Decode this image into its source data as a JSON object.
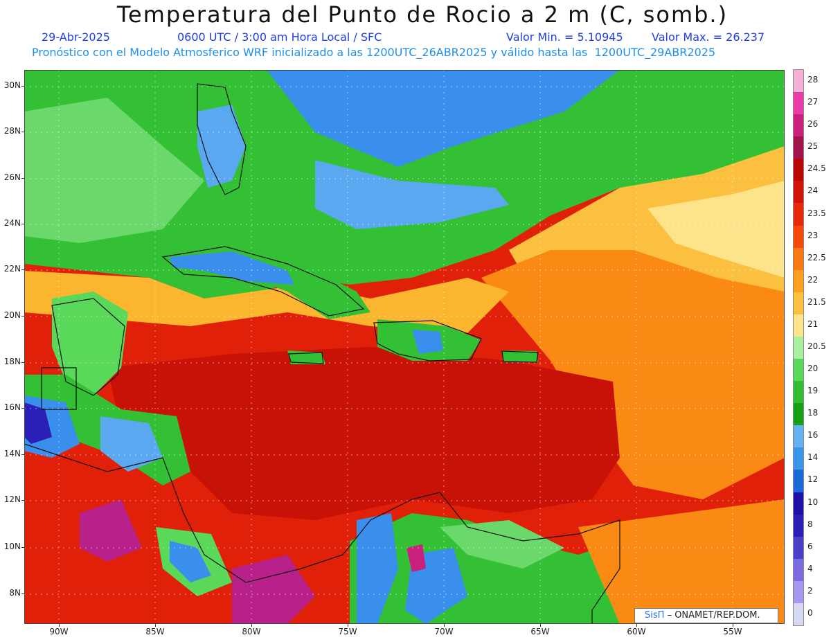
{
  "title": "Temperatura del Punto de Rocio a 2 m (C, somb.)",
  "subtitle": {
    "date": "29-Abr-2025",
    "time": "0600 UTC / 3:00 am Hora Local / SFC",
    "min": "Valor Min. = 5.10945",
    "max": "Valor Max. = 26.237",
    "model": "Pronóstico con el Modelo Atmosferico WRF inicializado a las 1200UTC_26ABR2025 y válido hasta las  1200UTC_29ABR2025"
  },
  "lat_labels": [
    "30N",
    "28N",
    "26N",
    "24N",
    "22N",
    "20N",
    "18N",
    "16N",
    "14N",
    "12N",
    "10N",
    "8N"
  ],
  "lon_labels": [
    "90W",
    "85W",
    "80W",
    "75W",
    "70W",
    "65W",
    "60W",
    "55W"
  ],
  "legend": {
    "levels": [
      "28",
      "27",
      "26",
      "25",
      "24.5",
      "24",
      "23.5",
      "23",
      "22.5",
      "22",
      "21.5",
      "21",
      "20.5",
      "20",
      "19",
      "18",
      "16",
      "14",
      "12",
      "10",
      "8",
      "6",
      "4",
      "2",
      "0"
    ],
    "colors": [
      "#f5b0d8",
      "#ea3ca8",
      "#c8207c",
      "#a0144a",
      "#b80606",
      "#d01208",
      "#e82a0a",
      "#f64a0a",
      "#fa7810",
      "#fca01e",
      "#fcc040",
      "#fde48a",
      "#a8f0a0",
      "#5ad85a",
      "#32be32",
      "#17a017",
      "#64b2f0",
      "#3a96ec",
      "#1a6ad8",
      "#1f10a8",
      "#2a20b8",
      "#4a40c8",
      "#7a6ce0",
      "#a598f0",
      "#d6d8f4"
    ]
  },
  "credit": {
    "brand": "SisΠ",
    "text": "– ONAMET/REP.DOM."
  }
}
